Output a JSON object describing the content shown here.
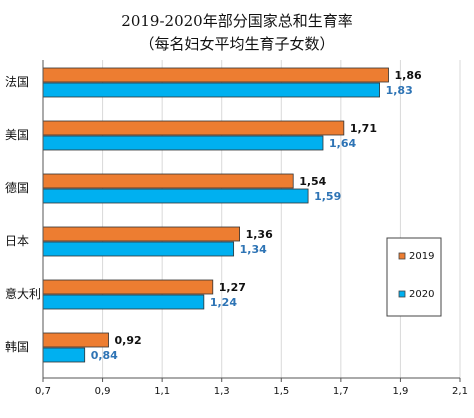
{
  "chart_data": {
    "type": "bar",
    "orientation": "horizontal",
    "title": "2019-2020年部分国家总和生育率",
    "subtitle": "（每名妇女平均生育子女数）",
    "categories": [
      "法国",
      "美国",
      "德国",
      "日本",
      "意大利",
      "韩国"
    ],
    "series": [
      {
        "name": "2019",
        "color": "#ed7d31",
        "values": [
          1.86,
          1.71,
          1.54,
          1.36,
          1.27,
          0.92
        ],
        "labels": [
          "1,86",
          "1,71",
          "1,54",
          "1,36",
          "1,27",
          "0,92"
        ],
        "label_color": "#111111"
      },
      {
        "name": "2020",
        "color": "#00b0f0",
        "values": [
          1.83,
          1.64,
          1.59,
          1.34,
          1.24,
          0.84
        ],
        "labels": [
          "1,83",
          "1,64",
          "1,59",
          "1,34",
          "1,24",
          "0,84"
        ],
        "label_color": "#2e74b5"
      }
    ],
    "xlim": [
      0.7,
      2.1
    ],
    "xticks": [
      0.7,
      0.9,
      1.1,
      1.3,
      1.5,
      1.7,
      1.9,
      2.1
    ],
    "xtick_labels": [
      "0,7",
      "0,9",
      "1,1",
      "1,3",
      "1,5",
      "1,7",
      "1,9",
      "2,1"
    ],
    "grid": "vertical",
    "legend_position": "right"
  }
}
